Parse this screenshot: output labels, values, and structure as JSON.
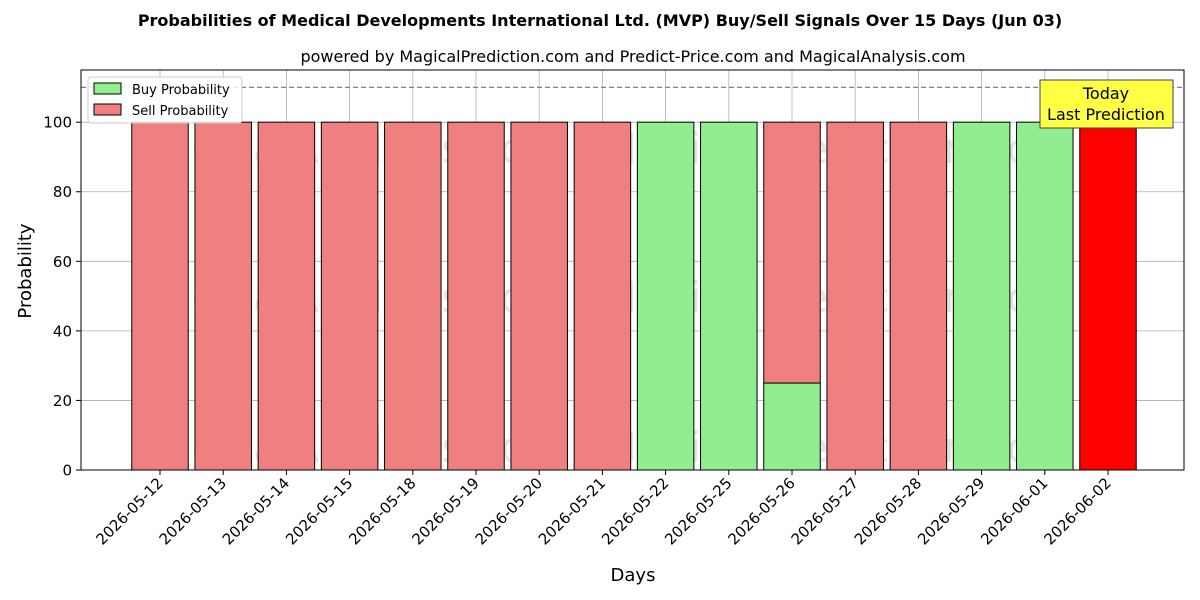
{
  "chart_data": {
    "type": "bar",
    "stacked": true,
    "title": "Probabilities of Medical Developments International Ltd. (MVP) Buy/Sell Signals Over 15 Days (Jun 03)",
    "subtitle": "powered by MagicalPrediction.com and Predict-Price.com and MagicalAnalysis.com",
    "xlabel": "Days",
    "ylabel": "Probability",
    "ylim": [
      0,
      115
    ],
    "yticks": [
      0,
      20,
      40,
      60,
      80,
      100
    ],
    "reference_line": 110,
    "grid": true,
    "legend_position": "top-left",
    "categories": [
      "2026-05-12",
      "2026-05-13",
      "2026-05-14",
      "2026-05-15",
      "2026-05-18",
      "2026-05-19",
      "2026-05-20",
      "2026-05-21",
      "2026-05-22",
      "2026-05-25",
      "2026-05-26",
      "2026-05-27",
      "2026-05-28",
      "2026-05-29",
      "2026-06-01",
      "2026-06-02"
    ],
    "series": [
      {
        "name": "Buy Probability",
        "color": "#90ee90",
        "values": [
          0,
          0,
          0,
          0,
          0,
          0,
          0,
          0,
          100,
          100,
          25,
          0,
          0,
          100,
          100,
          0
        ]
      },
      {
        "name": "Sell Probability",
        "color": "#f08080",
        "values": [
          100,
          100,
          100,
          100,
          100,
          100,
          100,
          100,
          0,
          0,
          75,
          100,
          100,
          0,
          0,
          100
        ]
      }
    ],
    "highlight": {
      "category": "2026-06-02",
      "color": "#ff0000"
    },
    "annotation": {
      "line1": "Today",
      "line2": "Last Prediction",
      "color": "#ffff44"
    },
    "watermarks": [
      "MagicalAnalysis.com",
      "MagicalPrediction.com"
    ]
  }
}
